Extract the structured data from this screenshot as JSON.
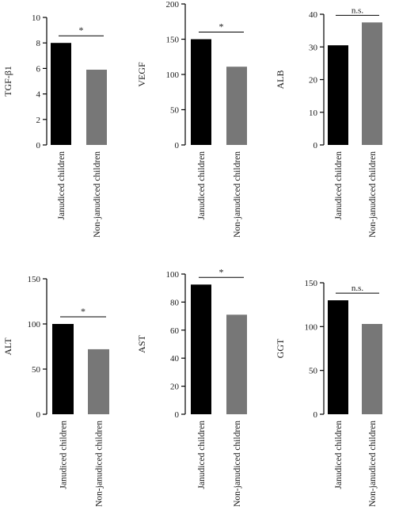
{
  "colors": {
    "bar_primary": "#000000",
    "bar_secondary": "#777777",
    "axis": "#000000"
  },
  "chart_data": [
    {
      "type": "bar",
      "ylabel": "TGF-β1",
      "categories": [
        "Janudiced children",
        "Non-janudiced children"
      ],
      "values": [
        8.0,
        5.9
      ],
      "ylim": [
        0,
        10
      ],
      "yticks": [
        0,
        2,
        4,
        6,
        8,
        10
      ],
      "significance": "*"
    },
    {
      "type": "bar",
      "ylabel": "VEGF",
      "categories": [
        "Janudiced children",
        "Non-janudiced children"
      ],
      "values": [
        150,
        111
      ],
      "ylim": [
        0,
        200
      ],
      "yticks": [
        0,
        50,
        100,
        150,
        200
      ],
      "significance": "*"
    },
    {
      "type": "bar",
      "ylabel": "ALB",
      "categories": [
        "Janudiced children",
        "Non-janudiced children"
      ],
      "values": [
        30.5,
        37.5
      ],
      "ylim": [
        0,
        40
      ],
      "yticks": [
        0,
        10,
        20,
        30,
        40
      ],
      "significance": "n.s."
    },
    {
      "type": "bar",
      "ylabel": "ALT",
      "categories": [
        "Janudiced children",
        "Non-janudiced children"
      ],
      "values": [
        100,
        72
      ],
      "ylim": [
        0,
        150
      ],
      "yticks": [
        0,
        50,
        100,
        150
      ],
      "significance": "*"
    },
    {
      "type": "bar",
      "ylabel": "AST",
      "categories": [
        "Janudiced children",
        "Non-janudiced children"
      ],
      "values": [
        92.5,
        71
      ],
      "ylim": [
        0,
        100
      ],
      "yticks": [
        0,
        20,
        40,
        60,
        80,
        100
      ],
      "significance": "*"
    },
    {
      "type": "bar",
      "ylabel": "GGT",
      "categories": [
        "Janudiced children",
        "Non-janudiced children"
      ],
      "values": [
        130,
        103
      ],
      "ylim": [
        0,
        150
      ],
      "yticks": [
        0,
        50,
        100,
        150
      ],
      "significance": "n.s."
    }
  ]
}
